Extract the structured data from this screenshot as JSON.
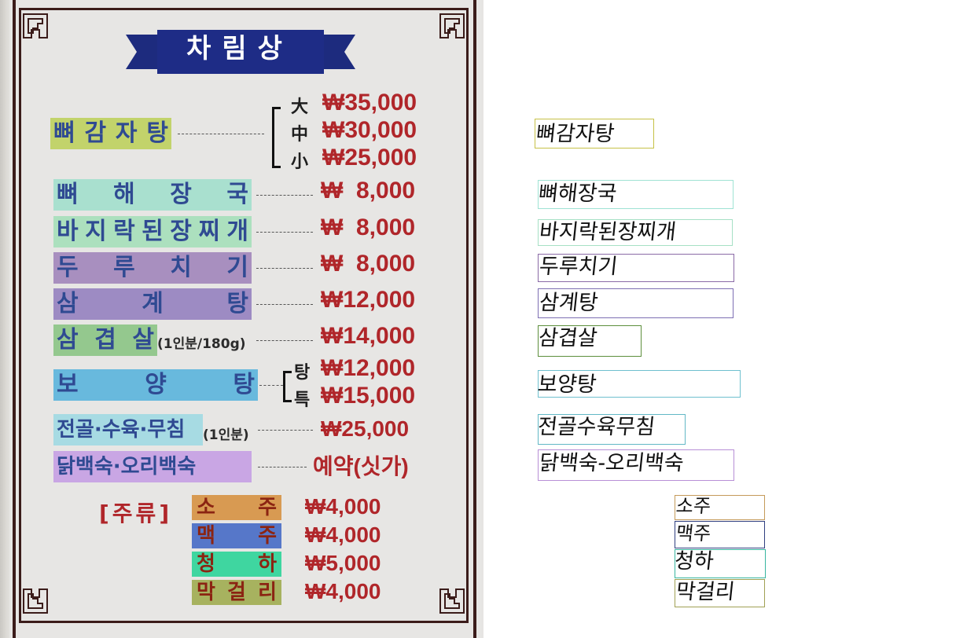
{
  "board": {
    "title": "차림상",
    "menu": [
      {
        "name": "뼈감자탕",
        "chars": [
          "뼈",
          "감",
          "자",
          "탕"
        ],
        "color": "#c2d36b",
        "sizes": [
          "大",
          "中",
          "小"
        ],
        "prices": [
          "₩35,000",
          "₩30,000",
          "₩25,000"
        ]
      },
      {
        "name": "뼈해장국",
        "chars": [
          "뼈",
          "해",
          "장",
          "국"
        ],
        "color": "#a9e0cf",
        "prices": [
          "₩  8,000"
        ]
      },
      {
        "name": "바지락된장찌개",
        "chars": [
          "바",
          "지",
          "락",
          "된",
          "장",
          "찌",
          "개"
        ],
        "color": "#ace0be",
        "prices": [
          "₩  8,000"
        ]
      },
      {
        "name": "두루치기",
        "chars": [
          "두",
          "루",
          "치",
          "기"
        ],
        "color": "#a88fbf",
        "prices": [
          "₩  8,000"
        ]
      },
      {
        "name": "삼계탕",
        "chars": [
          "삼",
          "계",
          "탕"
        ],
        "color": "#9d8bc3",
        "prices": [
          "₩12,000"
        ]
      },
      {
        "name": "삼겹살",
        "chars": [
          "삼",
          "겹",
          "살"
        ],
        "note": "(1인분/180g)",
        "color": "#94c88e",
        "prices": [
          "₩14,000"
        ]
      },
      {
        "name": "보양탕",
        "chars": [
          "보",
          "양",
          "탕"
        ],
        "color": "#68b9dd",
        "sizes": [
          "탕",
          "특"
        ],
        "prices": [
          "₩12,000",
          "₩15,000"
        ]
      },
      {
        "name": "전골·수육·무침",
        "chars": [
          "전골·수육·무침"
        ],
        "note": "(1인분)",
        "color": "#a7dbe3",
        "prices": [
          "₩25,000"
        ]
      },
      {
        "name": "닭백숙·오리백숙",
        "chars": [
          "닭백숙·오리백숙"
        ],
        "color": "#c9a6e4",
        "prices": [
          "예약(싯가)"
        ]
      }
    ],
    "liquor_label": "[주류]",
    "drinks": [
      {
        "name": "소주",
        "chars": [
          "소",
          "주"
        ],
        "color": "#d89a52",
        "price": "₩4,000"
      },
      {
        "name": "맥주",
        "chars": [
          "맥",
          "주"
        ],
        "color": "#5677c9",
        "price": "₩4,000"
      },
      {
        "name": "청하",
        "chars": [
          "청",
          "하"
        ],
        "color": "#3fd6a0",
        "price": "₩5,000"
      },
      {
        "name": "막걸리",
        "chars": [
          "막",
          "걸",
          "리"
        ],
        "color": "#a7b25f",
        "price": "₩4,000"
      }
    ]
  },
  "annotations": [
    {
      "text": "뼈감자탕",
      "color": "#c6c146"
    },
    {
      "text": "뼈해장국",
      "color": "#9fe3d4"
    },
    {
      "text": "바지락된장찌개",
      "color": "#a6e0c5"
    },
    {
      "text": "두루치기",
      "color": "#8a6aa6"
    },
    {
      "text": "삼계탕",
      "color": "#7d6eb3"
    },
    {
      "text": "삼겹살",
      "color": "#5d8f3c"
    },
    {
      "text": "보양탕",
      "color": "#6fc0cf"
    },
    {
      "text": "전골수육무침",
      "color": "#62b8c6"
    },
    {
      "text": "닭백숙-오리백숙",
      "color": "#b88fd6"
    },
    {
      "text": "소주",
      "color": "#c49a5a"
    },
    {
      "text": "맥주",
      "color": "#2f3f80"
    },
    {
      "text": "청하",
      "color": "#38b6a0"
    },
    {
      "text": "막걸리",
      "color": "#a1a154"
    }
  ]
}
